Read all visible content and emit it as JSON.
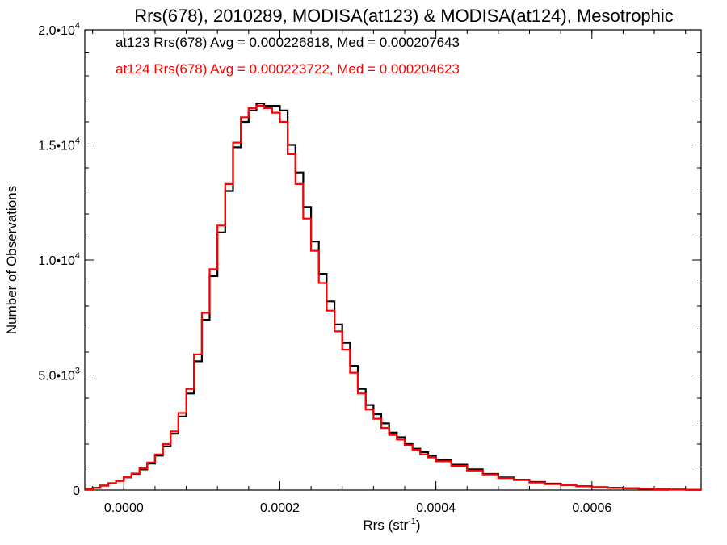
{
  "chart_data": {
    "type": "line",
    "title": "Rrs(678), 2010289, MODISA(at123) & MODISA(at124), Mesotrophic",
    "xlabel_base": "Rrs (str",
    "xlabel_sup": "-1",
    "xlabel_close": ")",
    "ylabel": "Number of Observations",
    "xlim": [
      -5e-05,
      0.00074
    ],
    "ylim": [
      0,
      20000
    ],
    "x_ticks": [
      {
        "v": 0.0,
        "label": "0.0000"
      },
      {
        "v": 0.0002,
        "label": "0.0002"
      },
      {
        "v": 0.0004,
        "label": "0.0004"
      },
      {
        "v": 0.0006,
        "label": "0.0006"
      }
    ],
    "y_ticks": [
      {
        "v": 0,
        "base": "0",
        "exp": ""
      },
      {
        "v": 5000,
        "base": "5.0•10",
        "exp": "3"
      },
      {
        "v": 10000,
        "base": "1.0•10",
        "exp": "4"
      },
      {
        "v": 15000,
        "base": "1.5•10",
        "exp": "4"
      },
      {
        "v": 20000,
        "base": "2.0•10",
        "exp": "4"
      }
    ],
    "annotations": [
      {
        "text": "at123 Rrs(678) Avg = 0.000226818, Med = 0.000207643",
        "color": "#000000"
      },
      {
        "text": "at124 Rrs(678) Avg = 0.000223722, Med = 0.000204623",
        "color": "#ff0000"
      }
    ],
    "series": [
      {
        "color": "#000000",
        "x": [
          -5e-05,
          -4e-05,
          -3e-05,
          -2e-05,
          -1e-05,
          0.0,
          1e-05,
          2e-05,
          3e-05,
          4e-05,
          5e-05,
          6e-05,
          7e-05,
          8e-05,
          9e-05,
          0.0001,
          0.00011,
          0.00012,
          0.00013,
          0.00014,
          0.00015,
          0.00016,
          0.00017,
          0.00018,
          0.00019,
          0.0002,
          0.00021,
          0.00022,
          0.00023,
          0.00024,
          0.00025,
          0.00026,
          0.00027,
          0.00028,
          0.00029,
          0.0003,
          0.00031,
          0.00032,
          0.00033,
          0.00034,
          0.00035,
          0.00036,
          0.00037,
          0.00038,
          0.00039,
          0.0004,
          0.00042,
          0.00044,
          0.00046,
          0.00048,
          0.0005,
          0.00052,
          0.00054,
          0.00056,
          0.00058,
          0.0006,
          0.00062,
          0.00064,
          0.00066,
          0.00068,
          0.0007,
          0.00072,
          0.00074
        ],
        "y": [
          50,
          100,
          200,
          300,
          400,
          550,
          700,
          900,
          1150,
          1500,
          1900,
          2450,
          3200,
          4200,
          5600,
          7400,
          9300,
          11200,
          13000,
          14900,
          16000,
          16500,
          16800,
          16700,
          16700,
          16500,
          15000,
          13800,
          12300,
          10800,
          9400,
          8200,
          7200,
          6400,
          5400,
          4400,
          3700,
          3300,
          2900,
          2500,
          2300,
          2000,
          1800,
          1650,
          1500,
          1300,
          1100,
          900,
          700,
          550,
          450,
          350,
          280,
          220,
          170,
          130,
          100,
          80,
          60,
          40,
          25,
          15,
          10
        ]
      },
      {
        "color": "#ff0000",
        "x": [
          -5e-05,
          -4e-05,
          -3e-05,
          -2e-05,
          -1e-05,
          0.0,
          1e-05,
          2e-05,
          3e-05,
          4e-05,
          5e-05,
          6e-05,
          7e-05,
          8e-05,
          9e-05,
          0.0001,
          0.00011,
          0.00012,
          0.00013,
          0.00014,
          0.00015,
          0.00016,
          0.00017,
          0.00018,
          0.00019,
          0.0002,
          0.00021,
          0.00022,
          0.00023,
          0.00024,
          0.00025,
          0.00026,
          0.00027,
          0.00028,
          0.00029,
          0.0003,
          0.00031,
          0.00032,
          0.00033,
          0.00034,
          0.00035,
          0.00036,
          0.00037,
          0.00038,
          0.00039,
          0.0004,
          0.00042,
          0.00044,
          0.00046,
          0.00048,
          0.0005,
          0.00052,
          0.00054,
          0.00056,
          0.00058,
          0.0006,
          0.00062,
          0.00064,
          0.00066,
          0.00068,
          0.0007,
          0.00072,
          0.00074
        ],
        "y": [
          40,
          90,
          190,
          290,
          400,
          560,
          720,
          950,
          1200,
          1550,
          2000,
          2550,
          3350,
          4400,
          5900,
          7700,
          9600,
          11500,
          13300,
          15100,
          16200,
          16600,
          16700,
          16600,
          16400,
          16000,
          14600,
          13300,
          11800,
          10400,
          9000,
          7800,
          6900,
          6100,
          5100,
          4200,
          3500,
          3100,
          2700,
          2400,
          2200,
          1950,
          1750,
          1550,
          1420,
          1250,
          1050,
          850,
          680,
          520,
          430,
          330,
          260,
          210,
          160,
          120,
          95,
          75,
          55,
          38,
          22,
          14,
          8
        ]
      }
    ]
  }
}
